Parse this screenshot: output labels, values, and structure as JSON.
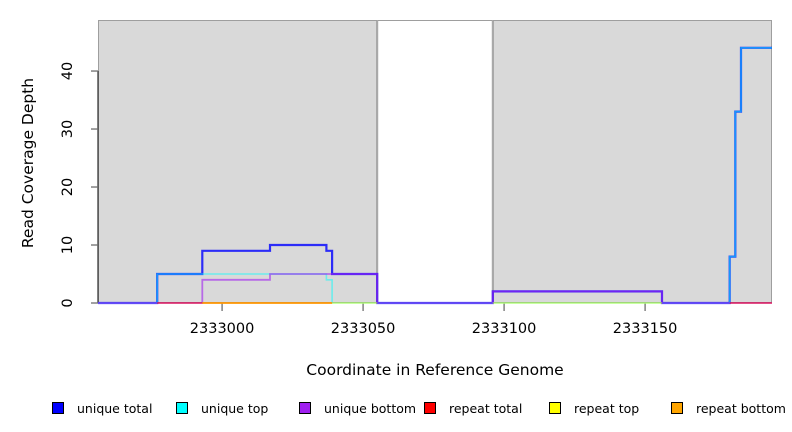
{
  "chart_data": {
    "type": "line",
    "subtype": "step-coverage-plot",
    "title": "",
    "xlabel": "Coordinate in Reference Genome",
    "ylabel": "Read Coverage Depth",
    "xlim": [
      2332956,
      2333195
    ],
    "ylim": [
      0,
      48.8
    ],
    "x_ticks": [
      2333000,
      2333050,
      2333100,
      2333150
    ],
    "y_ticks": [
      0,
      10,
      20,
      30,
      40
    ],
    "grid": "off",
    "background_regions": [
      {
        "name": "covered-region-left",
        "x0": 2332956,
        "x1": 2333055,
        "fill": "#D9D9D9",
        "border": "#9E9E9E"
      },
      {
        "name": "uncovered-gap",
        "x0": 2333055,
        "x1": 2333096,
        "fill": "#FFFFFF",
        "border": "#9E9E9E"
      },
      {
        "name": "covered-region-right",
        "x0": 2333096,
        "x1": 2333195,
        "fill": "#D9D9D9",
        "border": "#9E9E9E"
      }
    ],
    "series": [
      {
        "name": "unique total",
        "color": "#0000FF",
        "paths": [
          [
            [
              2332956,
              0
            ],
            [
              2332977,
              0
            ],
            [
              2332977,
              5
            ],
            [
              2332993,
              5
            ],
            [
              2332993,
              9
            ],
            [
              2333017,
              9
            ],
            [
              2333017,
              10
            ],
            [
              2333037,
              10
            ],
            [
              2333037,
              9
            ],
            [
              2333039,
              9
            ],
            [
              2333039,
              5
            ],
            [
              2333055,
              5
            ],
            [
              2333055,
              0
            ],
            [
              2333096,
              0
            ],
            [
              2333096,
              2
            ],
            [
              2333156,
              2
            ],
            [
              2333156,
              0
            ],
            [
              2333180,
              0
            ],
            [
              2333180,
              8
            ],
            [
              2333182,
              8
            ],
            [
              2333182,
              33
            ],
            [
              2333184,
              33
            ],
            [
              2333184,
              44
            ],
            [
              2333195,
              44
            ]
          ]
        ]
      },
      {
        "name": "unique top",
        "color": "#00FFFF",
        "paths": [
          [
            [
              2332956,
              0
            ],
            [
              2332977,
              0
            ],
            [
              2332977,
              5
            ],
            [
              2333037,
              5
            ],
            [
              2333037,
              4
            ],
            [
              2333039,
              4
            ],
            [
              2333039,
              0
            ],
            [
              2333180,
              0
            ],
            [
              2333180,
              8
            ],
            [
              2333182,
              8
            ],
            [
              2333182,
              33
            ],
            [
              2333184,
              33
            ],
            [
              2333184,
              44
            ],
            [
              2333195,
              44
            ]
          ]
        ]
      },
      {
        "name": "unique bottom",
        "color": "#A020F0",
        "paths": [
          [
            [
              2332956,
              0
            ],
            [
              2332993,
              0
            ],
            [
              2332993,
              4
            ],
            [
              2333017,
              4
            ],
            [
              2333017,
              5
            ],
            [
              2333055,
              5
            ],
            [
              2333055,
              0
            ],
            [
              2333096,
              0
            ],
            [
              2333096,
              2
            ],
            [
              2333156,
              2
            ],
            [
              2333156,
              0
            ],
            [
              2333195,
              0
            ]
          ]
        ]
      },
      {
        "name": "repeat total",
        "color": "#FF0000",
        "paths": [
          [
            [
              2332977,
              0
            ],
            [
              2333039,
              0
            ]
          ],
          [
            [
              2333180,
              0
            ],
            [
              2333195,
              0
            ]
          ]
        ]
      },
      {
        "name": "repeat top",
        "color": "#FFFF00",
        "paths": [
          [
            [
              2333039,
              0
            ],
            [
              2333055,
              0
            ]
          ],
          [
            [
              2333096,
              0
            ],
            [
              2333156,
              0
            ]
          ]
        ]
      },
      {
        "name": "repeat bottom",
        "color": "#FFA500",
        "paths": [
          [
            [
              2332993,
              0
            ],
            [
              2333039,
              0
            ]
          ]
        ]
      }
    ],
    "legend": {
      "position": "bottom",
      "entries": [
        {
          "label": "unique total",
          "color": "#0000FF"
        },
        {
          "label": "unique top",
          "color": "#00FFFF"
        },
        {
          "label": "unique bottom",
          "color": "#A020F0"
        },
        {
          "label": "repeat total",
          "color": "#FF0000"
        },
        {
          "label": "repeat top",
          "color": "#FFFF00"
        },
        {
          "label": "repeat bottom",
          "color": "#FFA500"
        }
      ]
    }
  }
}
